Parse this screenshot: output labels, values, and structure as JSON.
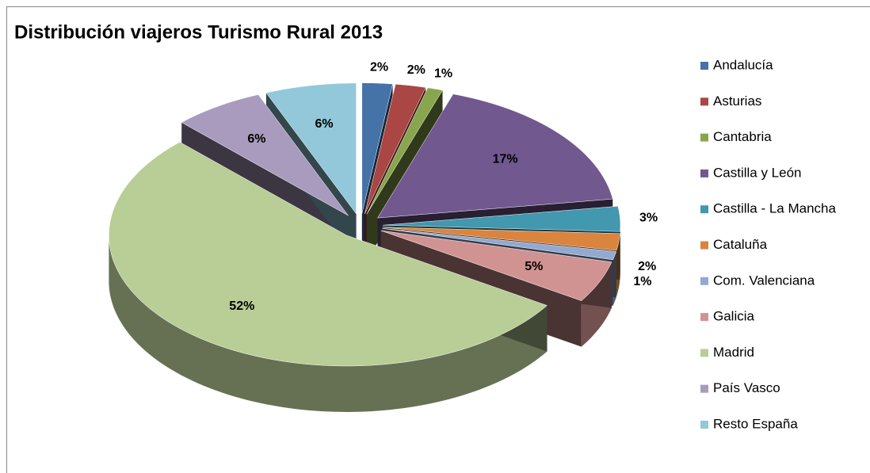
{
  "chart_data": {
    "type": "pie",
    "title": "Distribución viajeros Turismo Rural 2013",
    "categories": [
      "Andalucía",
      "Asturias",
      "Cantabria",
      "Castilla y León",
      "Castilla - La Mancha",
      "Cataluña",
      "Com. Valenciana",
      "Galicia",
      "Madrid",
      "País Vasco",
      "Resto España"
    ],
    "values": [
      2,
      2,
      1,
      17,
      3,
      2,
      1,
      5,
      52,
      6,
      6
    ],
    "value_labels": [
      "2%",
      "2%",
      "1%",
      "17%",
      "3%",
      "2%",
      "1%",
      "5%",
      "52%",
      "6%",
      "6%"
    ],
    "colors": [
      "#4572a7",
      "#aa4643",
      "#89a54e",
      "#71588f",
      "#4198af",
      "#db843d",
      "#93a9cf",
      "#d19392",
      "#b9cd96",
      "#a99bbd",
      "#92c8d9"
    ],
    "legend": "right"
  }
}
